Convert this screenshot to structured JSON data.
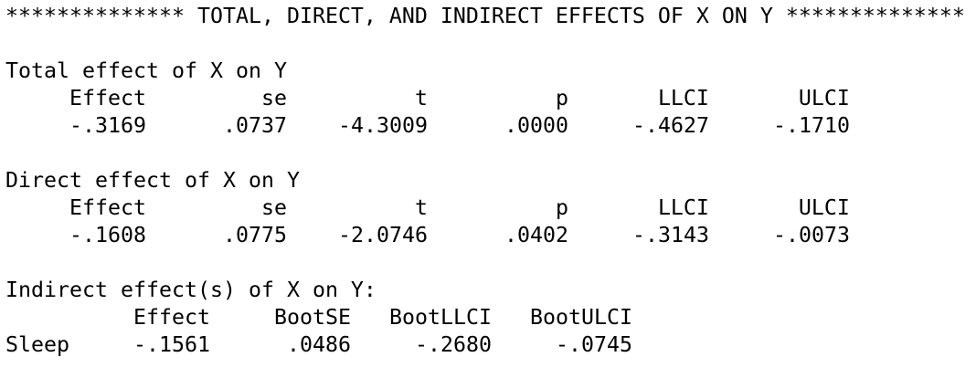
{
  "title": "************** TOTAL, DIRECT, AND INDIRECT EFFECTS OF X ON Y **************",
  "sections": [
    {
      "heading": "Total effect of X on Y",
      "columns": [
        "Effect",
        "se",
        "t",
        "p",
        "LLCI",
        "ULCI"
      ],
      "values": [
        "-.3169",
        ".0737",
        "-4.3009",
        ".0000",
        "-.4627",
        "-.1710"
      ]
    },
    {
      "heading": "Direct effect of X on Y",
      "columns": [
        "Effect",
        "se",
        "t",
        "p",
        "LLCI",
        "ULCI"
      ],
      "values": [
        "-.1608",
        ".0775",
        "-2.0746",
        ".0402",
        "-.3143",
        "-.0073"
      ]
    }
  ],
  "indirect": {
    "heading": "Indirect effect(s) of X on Y:",
    "columns": [
      "Effect",
      "BootSE",
      "BootLLCI",
      "BootULCI"
    ],
    "row_label": "Sleep",
    "values": [
      "-.1561",
      ".0486",
      "-.2680",
      "-.0745"
    ]
  }
}
